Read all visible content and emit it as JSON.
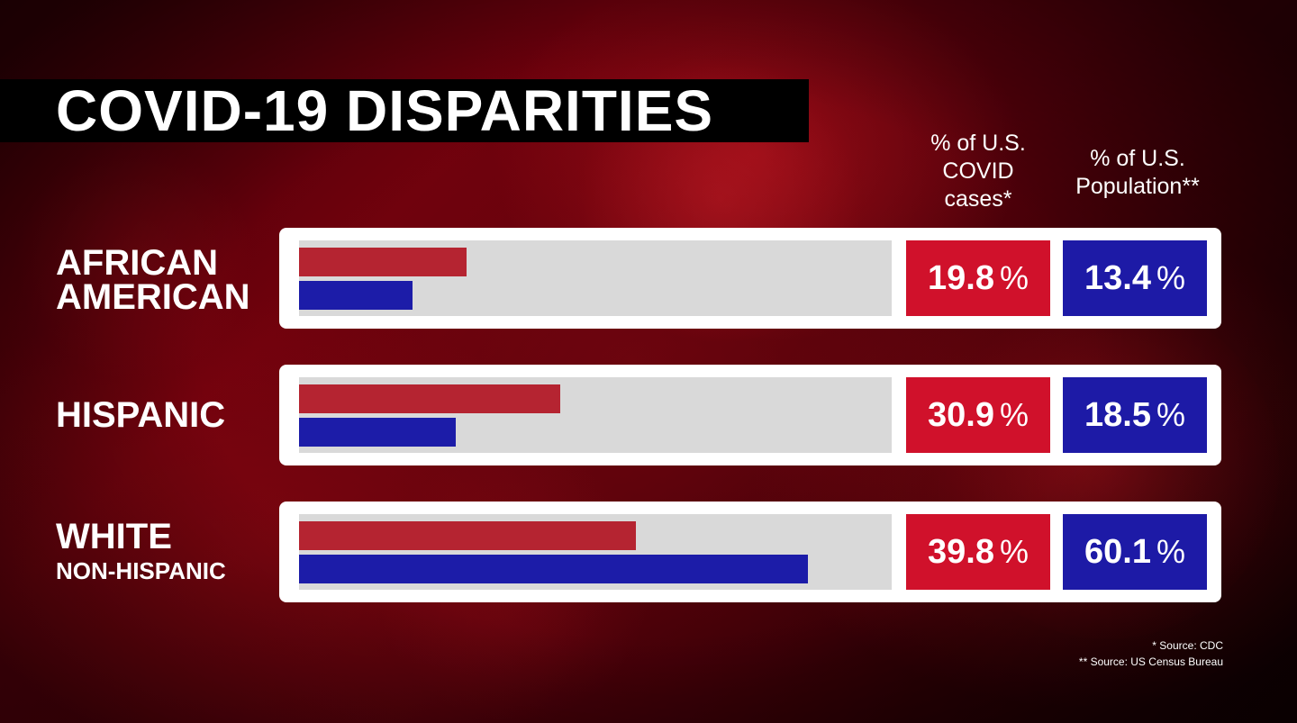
{
  "chart_data": {
    "type": "bar",
    "title": "COVID-19 DISPARITIES",
    "categories": [
      "AFRICAN AMERICAN",
      "HISPANIC",
      "WHITE NON-HISPANIC"
    ],
    "category_lines": [
      [
        "AFRICAN",
        "AMERICAN"
      ],
      [
        "HISPANIC"
      ],
      [
        "WHITE",
        "NON-HISPANIC"
      ]
    ],
    "series": [
      {
        "name": "% of U.S. COVID cases*",
        "values": [
          19.8,
          30.9,
          39.8
        ],
        "color": "#b52431",
        "box_color": "#d0112b"
      },
      {
        "name": "% of U.S. Population**",
        "values": [
          13.4,
          18.5,
          60.1
        ],
        "color": "#1c1ca8",
        "box_color": "#1d1aa6"
      }
    ],
    "value_labels": {
      "cases": [
        "19.8",
        "30.9",
        "39.8"
      ],
      "population": [
        "13.4",
        "18.5",
        "60.1"
      ]
    },
    "unit_symbol": "%",
    "xlim": [
      0,
      70
    ],
    "column_headers": {
      "cases": "% of U.S.\nCOVID\ncases*",
      "population": "% of U.S.\nPopulation**"
    },
    "sources": [
      "* Source:  CDC",
      "** Source:  US Census Bureau"
    ]
  }
}
